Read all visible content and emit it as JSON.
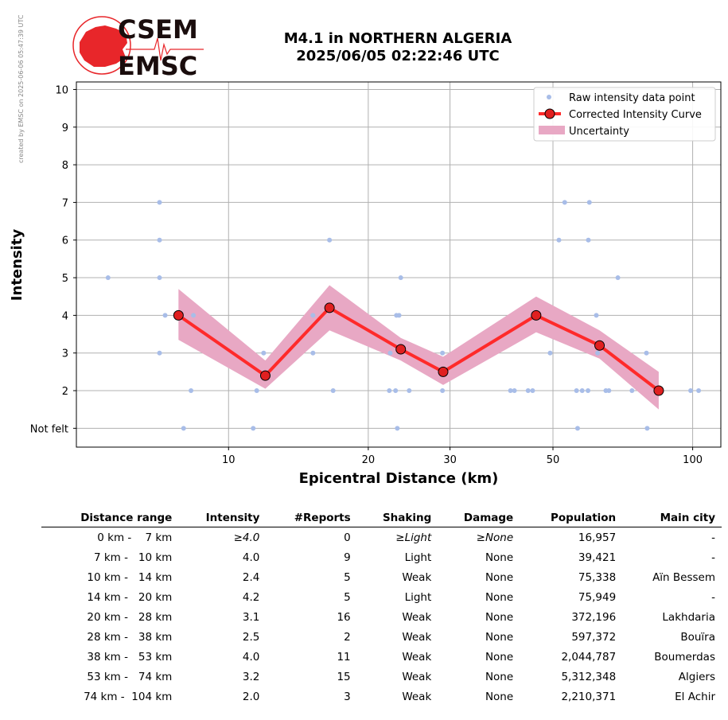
{
  "watermark": "created by EMSC on 2025-06-06 05:47:39 UTC",
  "logo": {
    "line1": "CSEM",
    "line2": "EMSC",
    "color": "#e8262a"
  },
  "title_line1": "M4.1 in NORTHERN ALGERIA",
  "title_line2": "2025/06/05 02:22:46 UTC",
  "chart_data": {
    "type": "scatter",
    "xlabel": "Epicentral Distance (km)",
    "ylabel": "Intensity",
    "x_scale": "log",
    "xlim": [
      4.7,
      115
    ],
    "ylim": [
      0.5,
      10.2
    ],
    "x_ticks": [
      10,
      20,
      30,
      50,
      100
    ],
    "y_ticks": [
      {
        "value": 1,
        "label": "Not felt"
      },
      {
        "value": 2,
        "label": "2"
      },
      {
        "value": 3,
        "label": "3"
      },
      {
        "value": 4,
        "label": "4"
      },
      {
        "value": 5,
        "label": "5"
      },
      {
        "value": 6,
        "label": "6"
      },
      {
        "value": 7,
        "label": "7"
      },
      {
        "value": 8,
        "label": "8"
      },
      {
        "value": 9,
        "label": "9"
      },
      {
        "value": 10,
        "label": "10"
      }
    ],
    "grid": true,
    "legend_position": "top-right",
    "legend": [
      "Raw intensity data point",
      "Corrected Intensity Curve",
      "Uncertainty"
    ],
    "colors": {
      "raw": "#a8bde8",
      "curve": "#ff2a2a",
      "marker": "#e02020",
      "band": "#e8a8c4"
    },
    "raw_points": [
      [
        5.5,
        5
      ],
      [
        7.1,
        7
      ],
      [
        7.1,
        6
      ],
      [
        7.1,
        5
      ],
      [
        7.1,
        3
      ],
      [
        7.3,
        4
      ],
      [
        8.0,
        1
      ],
      [
        8.3,
        2
      ],
      [
        8.4,
        4
      ],
      [
        11.3,
        1
      ],
      [
        11.5,
        2
      ],
      [
        11.9,
        3
      ],
      [
        15.2,
        3
      ],
      [
        15.2,
        4
      ],
      [
        16.5,
        6
      ],
      [
        16.8,
        2
      ],
      [
        22.2,
        2
      ],
      [
        22.3,
        3
      ],
      [
        22.9,
        2
      ],
      [
        23.0,
        4
      ],
      [
        23.1,
        1
      ],
      [
        23.3,
        4
      ],
      [
        23.5,
        5
      ],
      [
        24.5,
        2
      ],
      [
        28.9,
        2
      ],
      [
        28.9,
        3
      ],
      [
        40.5,
        2
      ],
      [
        41.3,
        2
      ],
      [
        44.2,
        2
      ],
      [
        45.2,
        2
      ],
      [
        49.3,
        3
      ],
      [
        51.5,
        6
      ],
      [
        53.0,
        7
      ],
      [
        56.2,
        2
      ],
      [
        56.5,
        1
      ],
      [
        57.8,
        2
      ],
      [
        59.5,
        2
      ],
      [
        59.6,
        6
      ],
      [
        59.9,
        7
      ],
      [
        62.0,
        4
      ],
      [
        62.4,
        3
      ],
      [
        65.0,
        2
      ],
      [
        66.0,
        2
      ],
      [
        69.0,
        5
      ],
      [
        74.0,
        2
      ],
      [
        79.5,
        3
      ],
      [
        79.8,
        1
      ],
      [
        99.0,
        2
      ],
      [
        103.0,
        2
      ]
    ],
    "series": [
      {
        "name": "Corrected Intensity Curve",
        "x": [
          7.8,
          12.0,
          16.5,
          23.5,
          29.0,
          46.0,
          63.0,
          84.5
        ],
        "y": [
          4.0,
          2.4,
          4.2,
          3.1,
          2.5,
          4.0,
          3.2,
          2.0
        ],
        "upper": [
          4.7,
          2.8,
          4.8,
          3.4,
          2.9,
          4.5,
          3.6,
          2.5
        ],
        "lower": [
          3.35,
          2.05,
          3.6,
          2.8,
          2.15,
          3.55,
          2.85,
          1.5
        ]
      }
    ]
  },
  "table": {
    "headers": [
      "Distance range",
      "Intensity",
      "#Reports",
      "Shaking",
      "Damage",
      "Population",
      "Main city"
    ],
    "rows": [
      [
        "0 km -    7 km",
        "≥4.0",
        "0",
        "≥Light",
        "≥None",
        "16,957",
        "-"
      ],
      [
        "7 km -   10 km",
        "4.0",
        "9",
        "Light",
        "None",
        "39,421",
        "-"
      ],
      [
        "10 km -   14 km",
        "2.4",
        "5",
        "Weak",
        "None",
        "75,338",
        "Aïn Bessem"
      ],
      [
        "14 km -   20 km",
        "4.2",
        "5",
        "Light",
        "None",
        "75,949",
        "-"
      ],
      [
        "20 km -   28 km",
        "3.1",
        "16",
        "Weak",
        "None",
        "372,196",
        "Lakhdaria"
      ],
      [
        "28 km -   38 km",
        "2.5",
        "2",
        "Weak",
        "None",
        "597,372",
        "Bouïra"
      ],
      [
        "38 km -   53 km",
        "4.0",
        "11",
        "Weak",
        "None",
        "2,044,787",
        "Boumerdas"
      ],
      [
        "53 km -   74 km",
        "3.2",
        "15",
        "Weak",
        "None",
        "5,312,348",
        "Algiers"
      ],
      [
        "74 km -  104 km",
        "2.0",
        "3",
        "Weak",
        "None",
        "2,210,371",
        "El Achir"
      ]
    ]
  }
}
